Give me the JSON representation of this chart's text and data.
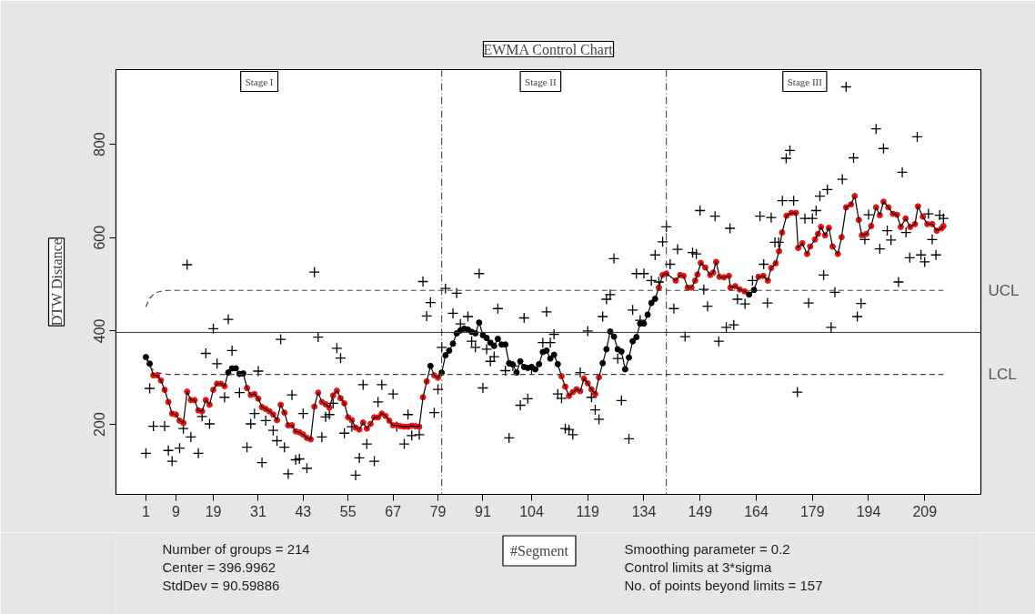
{
  "chart_data": {
    "type": "line",
    "title": "EWMA Control Chart",
    "xlabel": "#Segment",
    "ylabel": "DTW Distance",
    "xlim": [
      -7,
      224
    ],
    "ylim": [
      50,
      960
    ],
    "xticks": [
      1,
      9,
      19,
      31,
      43,
      55,
      67,
      79,
      91,
      104,
      119,
      134,
      149,
      164,
      179,
      194,
      209
    ],
    "yticks": [
      200,
      400,
      600,
      800
    ],
    "grid": false,
    "annotations": [
      "Stage I",
      "Stage II",
      "Stage III",
      "Number of groups = 214",
      "Center = 396.9962",
      "StdDev = 90.59886",
      "Smoothing parameter =  0.2",
      "Control limits at 3*sigma",
      "No. of points beyond limits = 157"
    ],
    "ref_lines": [
      {
        "axis": "y",
        "value": 396.9962,
        "color": "#333333",
        "line_style": "solid"
      },
      {
        "axis": "x",
        "value": 80,
        "color": "#333333",
        "line_style": "dashdot"
      },
      {
        "axis": "x",
        "value": 140,
        "color": "#333333",
        "line_style": "dashdot"
      }
    ],
    "series": [
      {
        "type": "scatter",
        "marker": "cross",
        "color": "#000000",
        "x": [
          1,
          2,
          3,
          6,
          7,
          8,
          10,
          11,
          12,
          13,
          15,
          16,
          17,
          18,
          19,
          20,
          22,
          23,
          24,
          26,
          28,
          29,
          30,
          31,
          32,
          33,
          35,
          36,
          37,
          38,
          39,
          40,
          41,
          42,
          43,
          44,
          46,
          47,
          48,
          49,
          50,
          51,
          52,
          53,
          54,
          56,
          57,
          58,
          59,
          60,
          62,
          63,
          64,
          67,
          68,
          70,
          71,
          72,
          74,
          75,
          76,
          77,
          78,
          79,
          80,
          81,
          83,
          84,
          85,
          87,
          88,
          89,
          90,
          91,
          92,
          93,
          94,
          95,
          97,
          98,
          99,
          101,
          102,
          103,
          104,
          107,
          108,
          109,
          110,
          111,
          112,
          113,
          114,
          115,
          117,
          119,
          120,
          121,
          122,
          123,
          124,
          125,
          126,
          127,
          128,
          130,
          131,
          132,
          133,
          134,
          136,
          137,
          138,
          139,
          140,
          141,
          142,
          143,
          145,
          147,
          148,
          149,
          150,
          151,
          153,
          154,
          156,
          157,
          158,
          159,
          161,
          163,
          165,
          166,
          167,
          168,
          169,
          170,
          171,
          172,
          173,
          174,
          175,
          177,
          178,
          179,
          180,
          181,
          182,
          183,
          184,
          185,
          187,
          188,
          190,
          191,
          192,
          193,
          194,
          196,
          197,
          198,
          199,
          200,
          202,
          203,
          204,
          205,
          207,
          208,
          209,
          210,
          211,
          212,
          213,
          214
        ],
        "values": [
          138,
          277,
          196,
          196,
          144,
          121,
          149,
          191,
          542,
          173,
          138,
          217,
          352,
          201,
          405,
          330,
          258,
          425,
          358,
          268,
          151,
          201,
          223,
          314,
          118,
          208,
          187,
          165,
          382,
          151,
          94,
          263,
          124,
          126,
          223,
          106,
          526,
          387,
          173,
          216,
          221,
          245,
          363,
          342,
          181,
          195,
          91,
          128,
          285,
          158,
          121,
          248,
          285,
          265,
          195,
          158,
          221,
          176,
          178,
          506,
          432,
          461,
          225,
          275,
          365,
          491,
          438,
          481,
          415,
          431,
          378,
          365,
          523,
          278,
          361,
          335,
          345,
          448,
          315,
          171,
          325,
          241,
          428,
          255,
          318,
          375,
          441,
          375,
          393,
          265,
          256,
          191,
          189,
          178,
          311,
          400,
          258,
          231,
          211,
          431,
          468,
          478,
          555,
          341,
          251,
          169,
          445,
          523,
          423,
          523,
          508,
          563,
          505,
          591,
          623,
          543,
          448,
          575,
          388,
          568,
          565,
          658,
          489,
          453,
          646,
          378,
          408,
          620,
          413,
          468,
          458,
          508,
          646,
          543,
          460,
          643,
          590,
          590,
          679,
          770,
          787,
          679,
          269,
          641,
          460,
          641,
          658,
          689,
          520,
          703,
          408,
          483,
          725,
          923,
          771,
          431,
          459,
          596,
          649,
          833,
          576,
          791,
          615,
          595,
          505,
          740,
          611,
          557,
          816,
          563,
          548,
          651,
          596,
          563,
          648,
          641
        ]
      },
      {
        "marker": "circle",
        "color": "#000000",
        "line_style": "solid",
        "x": [
          1,
          2,
          3,
          4,
          5,
          6,
          7,
          8,
          9,
          10,
          11,
          12,
          13,
          14,
          15,
          16,
          17,
          18,
          19,
          20,
          21,
          22,
          23,
          24,
          25,
          26,
          27,
          28,
          29,
          30,
          31,
          32,
          33,
          34,
          35,
          36,
          37,
          38,
          39,
          40,
          41,
          42,
          43,
          44,
          45,
          46,
          47,
          48,
          49,
          50,
          51,
          52,
          53,
          54,
          55,
          56,
          57,
          58,
          59,
          60,
          61,
          62,
          63,
          64,
          65,
          66,
          67,
          68,
          69,
          70,
          71,
          72,
          73,
          74,
          75,
          76,
          77,
          78,
          79,
          80,
          81,
          82,
          83,
          84,
          85,
          86,
          87,
          88,
          89,
          90,
          91,
          92,
          93,
          94,
          95,
          96,
          97,
          98,
          99,
          100,
          101,
          102,
          103,
          104,
          105,
          106,
          107,
          108,
          109,
          110,
          111,
          112,
          113,
          114,
          115,
          116,
          117,
          118,
          119,
          120,
          121,
          122,
          123,
          124,
          125,
          126,
          127,
          128,
          129,
          130,
          131,
          132,
          133,
          134,
          135,
          136,
          137,
          138,
          139,
          140,
          142.5,
          143.7,
          144.6,
          145.7,
          146.7,
          147.7,
          148.3,
          149.2,
          150.4,
          151.7,
          152.5,
          153.3,
          154.2,
          155.4,
          156.7,
          157.1,
          158.4,
          159.6,
          160.9,
          162.1,
          163.4,
          164.6,
          165.9,
          167.1,
          168.0,
          169.2,
          170.1,
          170.9,
          172.1,
          173.4,
          174.6,
          175.2,
          176.3,
          177.6,
          178.4,
          179.7,
          180.5,
          181.3,
          182.4,
          183.4,
          184.4,
          185.8,
          186.8,
          188.0,
          189.3,
          190.3,
          191.4,
          192.2,
          193.4,
          194.7,
          196.0,
          197.0,
          198.0,
          199.3,
          200.5,
          201.6,
          202.6,
          203.9,
          205.1,
          206.4,
          207.2,
          208.5,
          209.7,
          211.0,
          212.2,
          213.5,
          214.0
        ],
        "values": [
          344,
          330,
          305,
          305,
          294,
          274,
          248,
          223,
          221,
          208,
          203,
          270,
          252,
          252,
          230,
          228,
          252,
          242,
          274,
          287,
          287,
          282,
          311,
          320,
          320,
          308,
          309,
          278,
          263,
          265,
          255,
          237,
          233,
          228,
          221,
          209,
          242,
          225,
          198,
          198,
          185,
          183,
          178,
          171,
          168,
          238,
          268,
          248,
          243,
          236,
          262,
          272,
          256,
          245,
          215,
          209,
          193,
          189,
          204,
          191,
          201,
          215,
          215,
          223,
          218,
          208,
          198,
          198,
          196,
          195,
          195,
          197,
          196,
          195,
          258,
          292,
          325,
          305,
          300,
          311,
          348,
          358,
          373,
          395,
          401,
          405,
          403,
          398,
          395,
          418,
          391,
          385,
          375,
          368,
          383,
          371,
          371,
          331,
          328,
          311,
          335,
          323,
          321,
          323,
          318,
          329,
          355,
          358,
          341,
          349,
          329,
          303,
          281,
          261,
          269,
          275,
          271,
          298,
          288,
          275,
          265,
          301,
          331,
          361,
          399,
          388,
          361,
          356,
          318,
          343,
          378,
          387,
          416,
          416,
          435,
          460,
          469,
          493,
          520,
          523,
          508,
          520,
          518,
          493,
          493,
          508,
          521,
          546,
          536,
          520,
          525,
          548,
          516,
          515,
          518,
          493,
          496,
          489,
          485,
          478,
          488,
          516,
          518,
          508,
          535,
          545,
          571,
          611,
          647,
          653,
          653,
          578,
          588,
          565,
          581,
          596,
          608,
          623,
          605,
          621,
          581,
          565,
          601,
          665,
          671,
          689,
          638,
          605,
          608,
          625,
          665,
          648,
          677,
          665,
          651,
          649,
          623,
          641,
          623,
          629,
          667,
          645,
          629,
          629,
          615,
          620,
          625
        ],
        "colors": [
          "#000000",
          "#000000",
          "#ee1111",
          "#ee1111",
          "#ee1111",
          "#ee1111",
          "#ee1111",
          "#ee1111",
          "#ee1111",
          "#ee1111",
          "#ee1111",
          "#ee1111",
          "#ee1111",
          "#ee1111",
          "#ee1111",
          "#ee1111",
          "#ee1111",
          "#ee1111",
          "#ee1111",
          "#ee1111",
          "#ee1111",
          "#ee1111",
          "#000000",
          "#000000",
          "#000000",
          "#000000",
          "#000000",
          "#ee1111",
          "#ee1111",
          "#ee1111",
          "#ee1111",
          "#ee1111",
          "#ee1111",
          "#ee1111",
          "#ee1111",
          "#ee1111",
          "#ee1111",
          "#ee1111",
          "#ee1111",
          "#ee1111",
          "#ee1111",
          "#ee1111",
          "#ee1111",
          "#ee1111",
          "#ee1111",
          "#ee1111",
          "#ee1111",
          "#ee1111",
          "#ee1111",
          "#ee1111",
          "#ee1111",
          "#ee1111",
          "#ee1111",
          "#ee1111",
          "#ee1111",
          "#ee1111",
          "#ee1111",
          "#ee1111",
          "#ee1111",
          "#ee1111",
          "#ee1111",
          "#ee1111",
          "#ee1111",
          "#ee1111",
          "#ee1111",
          "#ee1111",
          "#ee1111",
          "#ee1111",
          "#ee1111",
          "#ee1111",
          "#ee1111",
          "#ee1111",
          "#ee1111",
          "#ee1111",
          "#ee1111",
          "#ee1111",
          "#000000",
          "#ee1111",
          "#ee1111",
          "#000000",
          "#000000",
          "#000000",
          "#000000",
          "#000000",
          "#000000",
          "#000000",
          "#000000",
          "#000000",
          "#000000",
          "#000000",
          "#000000",
          "#000000",
          "#000000",
          "#000000",
          "#000000",
          "#000000",
          "#000000",
          "#000000",
          "#000000",
          "#000000",
          "#000000",
          "#000000",
          "#000000",
          "#000000",
          "#000000",
          "#000000",
          "#000000",
          "#000000",
          "#000000",
          "#000000",
          "#000000",
          "#ee1111",
          "#ee1111",
          "#ee1111",
          "#ee1111",
          "#ee1111",
          "#ee1111",
          "#ee1111",
          "#ee1111",
          "#ee1111",
          "#ee1111",
          "#ee1111",
          "#000000",
          "#000000",
          "#000000",
          "#000000",
          "#000000",
          "#000000",
          "#000000",
          "#000000",
          "#000000",
          "#000000",
          "#000000",
          "#000000",
          "#000000",
          "#000000",
          "#000000",
          "#ee1111",
          "#ee1111",
          "#ee1111",
          "#ee1111",
          "#ee1111",
          "#ee1111",
          "#ee1111",
          "#ee1111",
          "#ee1111",
          "#ee1111",
          "#ee1111",
          "#ee1111",
          "#ee1111",
          "#ee1111",
          "#ee1111",
          "#ee1111",
          "#ee1111",
          "#ee1111",
          "#ee1111",
          "#ee1111",
          "#ee1111",
          "#ee1111",
          "#000000",
          "#000000",
          "#ee1111",
          "#ee1111",
          "#ee1111",
          "#ee1111",
          "#ee1111",
          "#ee1111",
          "#ee1111",
          "#ee1111",
          "#ee1111",
          "#ee1111",
          "#ee1111",
          "#ee1111",
          "#ee1111",
          "#ee1111",
          "#ee1111",
          "#ee1111",
          "#ee1111",
          "#ee1111",
          "#ee1111",
          "#ee1111",
          "#ee1111",
          "#ee1111",
          "#ee1111",
          "#ee1111",
          "#ee1111",
          "#ee1111",
          "#ee1111",
          "#ee1111",
          "#ee1111",
          "#ee1111",
          "#ee1111",
          "#ee1111",
          "#ee1111",
          "#ee1111",
          "#ee1111",
          "#ee1111",
          "#ee1111",
          "#ee1111",
          "#ee1111",
          "#ee1111",
          "#ee1111",
          "#ee1111",
          "#ee1111",
          "#ee1111",
          "#ee1111",
          "#ee1111"
        ]
      },
      {
        "type": "line",
        "name": "UCL",
        "color": "#444444",
        "line_style": "dashed",
        "marker": "none",
        "x": [
          1,
          2,
          3,
          4,
          5,
          7,
          214
        ],
        "values": [
          452,
          470,
          478,
          483,
          485,
          487,
          487
        ]
      },
      {
        "type": "line",
        "name": "LCL",
        "color": "#444444",
        "line_style": "dashed",
        "marker": "none",
        "x": [
          1,
          2,
          3,
          4,
          5,
          7,
          214
        ],
        "values": [
          342,
          324,
          316,
          311,
          309,
          307,
          307
        ]
      }
    ]
  }
}
